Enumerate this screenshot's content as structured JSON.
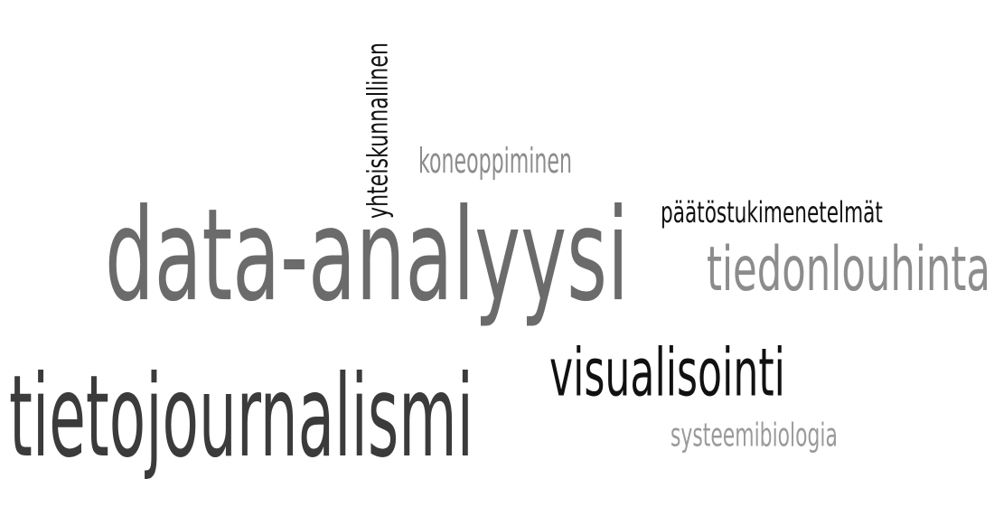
{
  "words": [
    {
      "key": "data-analyysi",
      "text": "data-analyysi",
      "color": "#6b6b6b",
      "rotated": false
    },
    {
      "key": "tietojournalismi",
      "text": "tietojournalismi",
      "color": "#3b3b3b",
      "rotated": false
    },
    {
      "key": "tiedonlouhinta",
      "text": "tiedonlouhinta",
      "color": "#8c8c8c",
      "rotated": false
    },
    {
      "key": "visualisointi",
      "text": "visualisointi",
      "color": "#111111",
      "rotated": false
    },
    {
      "key": "koneoppiminen",
      "text": "koneoppiminen",
      "color": "#8c8c8c",
      "rotated": false
    },
    {
      "key": "paatostukimenetelmat",
      "text": "päätöstukimenetelmät",
      "color": "#111111",
      "rotated": false
    },
    {
      "key": "systeemibiologia",
      "text": "systeemibiologia",
      "color": "#9a9a9a",
      "rotated": false
    },
    {
      "key": "yhteiskunnallinen",
      "text": "yhteiskunnallinen",
      "color": "#111111",
      "rotated": true
    }
  ]
}
